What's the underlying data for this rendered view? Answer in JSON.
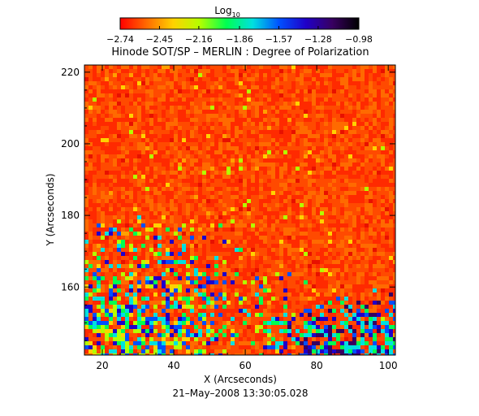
{
  "chart_data": {
    "type": "heatmap",
    "title": "Hinode SOT/SP – MERLIN : Degree of Polarization",
    "xlabel": "X (Arcseconds)",
    "ylabel": "Y (Arcseconds)",
    "date_label": "21–May–2008 13:30:05.028",
    "xlim": [
      15,
      102
    ],
    "ylim": [
      141,
      222
    ],
    "x_ticks": [
      20,
      40,
      60,
      80,
      100
    ],
    "y_ticks": [
      160,
      180,
      200,
      220
    ],
    "colorbar": {
      "label": "Log",
      "label_subscript": "10",
      "min": -2.74,
      "max": -0.98,
      "tick_values": [
        -2.74,
        -2.45,
        -2.16,
        -1.86,
        -1.57,
        -1.28,
        -0.98
      ],
      "tick_labels": [
        "−2.74",
        "−2.45",
        "−2.16",
        "−1.86",
        "−1.57",
        "−1.28",
        "−0.98"
      ],
      "colormap": [
        "#ff0000",
        "#ff6a00",
        "#ffd200",
        "#b4ff00",
        "#00ff50",
        "#00e0e0",
        "#0050ff",
        "#2000c8",
        "#380060",
        "#000000"
      ]
    },
    "regions": [
      {
        "x": [
          15,
          102
        ],
        "y": [
          141,
          222
        ],
        "level": "low",
        "log_value": -2.74
      },
      {
        "x": [
          15,
          60
        ],
        "y": [
          141,
          180
        ],
        "level": "mixed",
        "log_value": -2.0
      },
      {
        "x": [
          70,
          102
        ],
        "y": [
          141,
          160
        ],
        "level": "high",
        "log_value": -1.1
      }
    ]
  }
}
